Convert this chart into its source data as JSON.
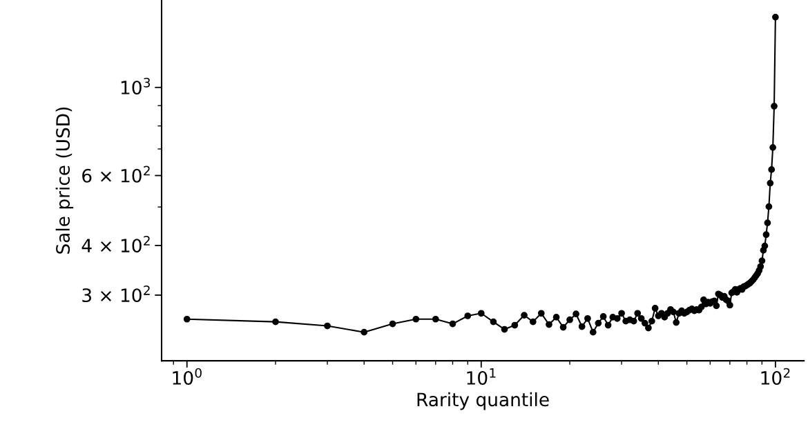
{
  "chart_data": {
    "type": "line",
    "xlabel": "Rarity quantile",
    "ylabel": "Sale price (USD)",
    "log": "xy",
    "grid": false,
    "marker": "circle",
    "line_style": "solid",
    "xlim": [
      0.82,
      125
    ],
    "ylim": [
      205,
      1660
    ],
    "xticks": [
      {
        "value": 0.9,
        "label": null
      },
      {
        "value": 1,
        "label": "10$^{0}$"
      },
      {
        "value": 2,
        "label": null
      },
      {
        "value": 3,
        "label": null
      },
      {
        "value": 4,
        "label": null
      },
      {
        "value": 5,
        "label": null
      },
      {
        "value": 6,
        "label": null
      },
      {
        "value": 7,
        "label": null
      },
      {
        "value": 8,
        "label": null
      },
      {
        "value": 9,
        "label": null
      },
      {
        "value": 10,
        "label": "10$^{1}$"
      },
      {
        "value": 20,
        "label": null
      },
      {
        "value": 30,
        "label": null
      },
      {
        "value": 40,
        "label": null
      },
      {
        "value": 50,
        "label": null
      },
      {
        "value": 60,
        "label": null
      },
      {
        "value": 70,
        "label": null
      },
      {
        "value": 80,
        "label": null
      },
      {
        "value": 90,
        "label": null
      },
      {
        "value": 100,
        "label": "10$^{2}$"
      }
    ],
    "yticks": [
      {
        "value": 300,
        "label": "3 × 10$^{2}$"
      },
      {
        "value": 400,
        "label": "4 × 10$^{2}$"
      },
      {
        "value": 500,
        "label": null
      },
      {
        "value": 600,
        "label": "6 × 10$^{2}$"
      },
      {
        "value": 700,
        "label": null
      },
      {
        "value": 800,
        "label": null
      },
      {
        "value": 900,
        "label": null
      },
      {
        "value": 1000,
        "label": "10$^{3}$"
      }
    ],
    "x": [
      1,
      2,
      3,
      4,
      5,
      6,
      7,
      8,
      9,
      10,
      11,
      12,
      13,
      14,
      15,
      16,
      17,
      18,
      19,
      20,
      21,
      22,
      23,
      24,
      25,
      26,
      27,
      28,
      29,
      30,
      31,
      32,
      33,
      34,
      35,
      36,
      37,
      38,
      39,
      40,
      41,
      42,
      43,
      44,
      45,
      46,
      47,
      48,
      49,
      50,
      51,
      52,
      53,
      54,
      55,
      56,
      57,
      58,
      59,
      60,
      61,
      62,
      63,
      64,
      65,
      66,
      67,
      68,
      69,
      70,
      71,
      72,
      73,
      74,
      75,
      76,
      77,
      78,
      79,
      80,
      81,
      82,
      83,
      84,
      85,
      86,
      87,
      88,
      89,
      90,
      91,
      92,
      93,
      94,
      95,
      96,
      97,
      98,
      99,
      100
    ],
    "series": [
      {
        "color": "#000000",
        "values": [
          261,
          257,
          251,
          242,
          254,
          261,
          261,
          254,
          266,
          270,
          257,
          246,
          252,
          267,
          257,
          270,
          253,
          264,
          249,
          260,
          269,
          250,
          262,
          242,
          255,
          265,
          252,
          264,
          262,
          270,
          258,
          260,
          258,
          270,
          262,
          255,
          248,
          258,
          278,
          266,
          270,
          264,
          270,
          276,
          272,
          256,
          270,
          274,
          270,
          272,
          275,
          277,
          274,
          276,
          275,
          280,
          292,
          285,
          288,
          286,
          289,
          290,
          282,
          302,
          300,
          296,
          298,
          292,
          290,
          283,
          304,
          306,
          310,
          305,
          310,
          312,
          310,
          315,
          316,
          318,
          320,
          322,
          325,
          328,
          332,
          336,
          340,
          346,
          354,
          366,
          389,
          399,
          426,
          456,
          501,
          574,
          621,
          706,
          897,
          1503
        ]
      }
    ]
  }
}
